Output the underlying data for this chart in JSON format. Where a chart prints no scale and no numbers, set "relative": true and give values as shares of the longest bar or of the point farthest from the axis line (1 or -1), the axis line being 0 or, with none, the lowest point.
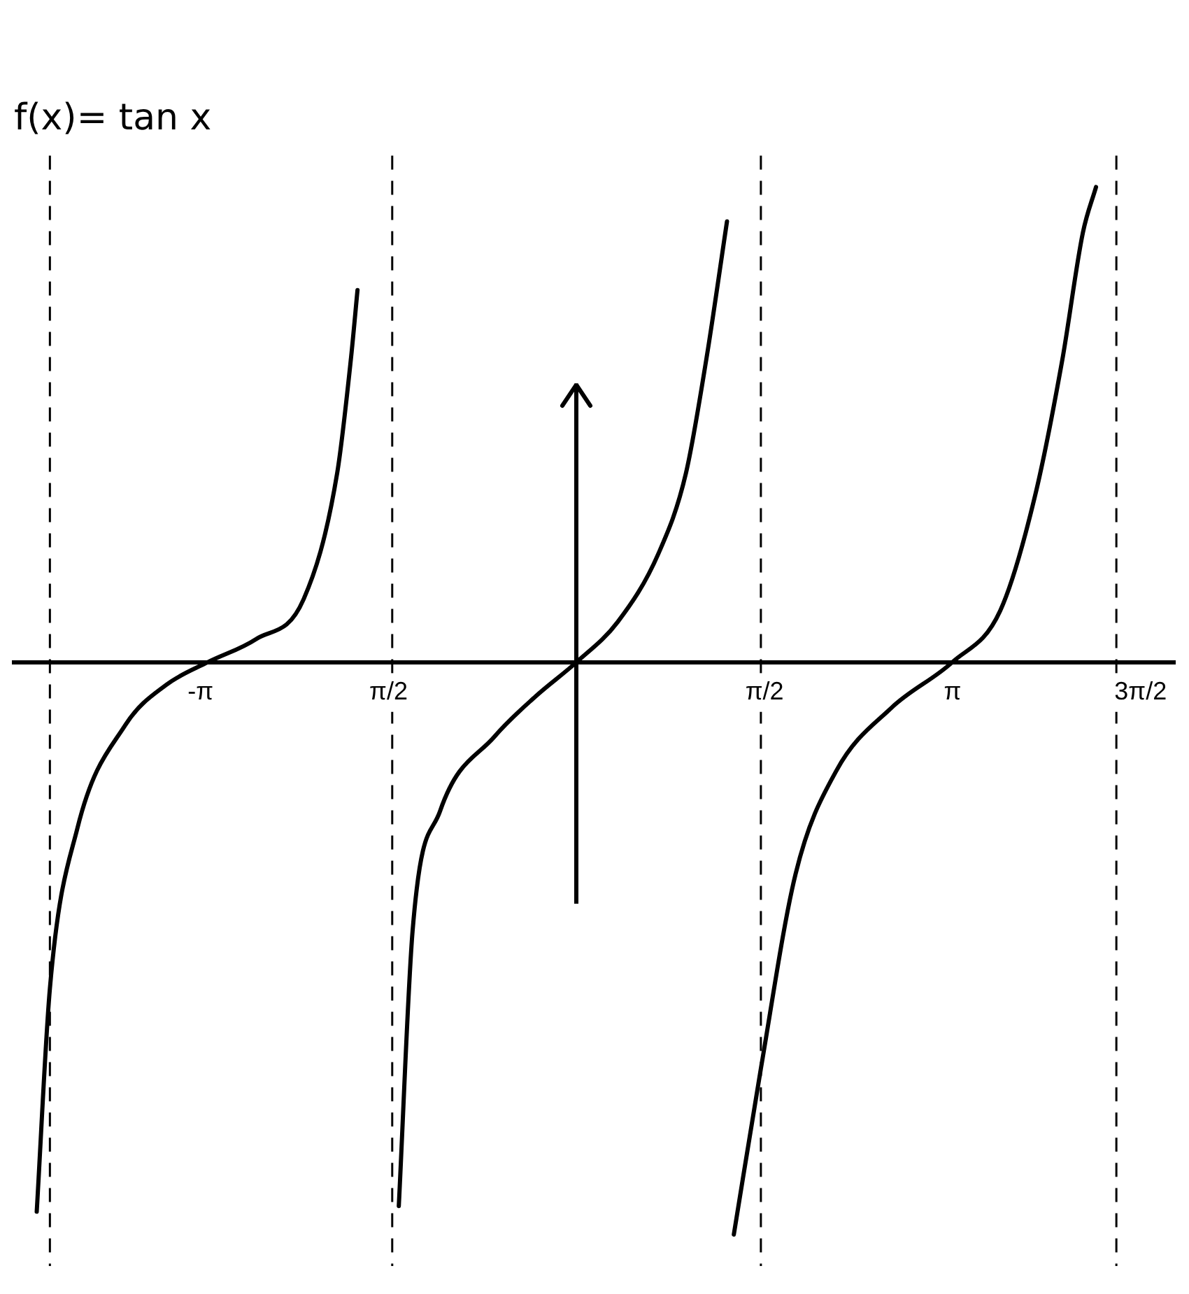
{
  "chart_data": {
    "type": "line",
    "title": "f(x)= tan x",
    "relative": true,
    "xlim": [
      -4.7,
      5.0
    ],
    "xticks": [
      {
        "value": -3.1416,
        "label": "-π"
      },
      {
        "value": -1.5708,
        "label": "π/2"
      },
      {
        "value": 1.5708,
        "label": "π/2"
      },
      {
        "value": 3.1416,
        "label": "π"
      },
      {
        "value": 4.7124,
        "label": "3π/2"
      }
    ],
    "series": [
      {
        "color": "#000000",
        "x": [
          -4.51,
          -4.4,
          -4.17,
          -3.77,
          -3.43,
          -3.08,
          -2.68,
          -2.28,
          -2.0,
          -1.885,
          -1.83
        ],
        "values": [
          -0.96,
          -0.57,
          -0.29,
          -0.11,
          -0.04,
          0,
          0.04,
          0.11,
          0.33,
          0.53,
          0.65
        ]
      },
      {
        "color": "#000000",
        "x": [
          -1.485,
          -1.37,
          -1.14,
          -0.685,
          -0.343,
          0,
          0.343,
          0.685,
          0.914,
          1.085,
          1.257
        ],
        "values": [
          -0.95,
          -0.47,
          -0.26,
          -0.13,
          -0.06,
          0,
          0.07,
          0.19,
          0.33,
          0.53,
          0.77
        ]
      },
      {
        "color": "#000000",
        "x": [
          1.314,
          1.54,
          1.83,
          2.17,
          2.63,
          3.14,
          3.54,
          3.83,
          4.06,
          4.23,
          4.34
        ],
        "values": [
          -1,
          -0.71,
          -0.37,
          -0.19,
          -0.08,
          0,
          0.09,
          0.29,
          0.53,
          0.75,
          0.83
        ]
      }
    ],
    "ref_lines": [
      {
        "axis": "x",
        "value": -4.4,
        "color": "#000000",
        "line_style": "dashed"
      },
      {
        "axis": "x",
        "value": -1.54,
        "color": "#000000",
        "line_style": "dashed"
      },
      {
        "axis": "x",
        "value": 1.54,
        "color": "#000000",
        "line_style": "dashed"
      },
      {
        "axis": "x",
        "value": 4.51,
        "color": "#000000",
        "line_style": "dashed"
      }
    ],
    "grid": false,
    "legend": false,
    "marker": "none",
    "line_style": "solid"
  }
}
